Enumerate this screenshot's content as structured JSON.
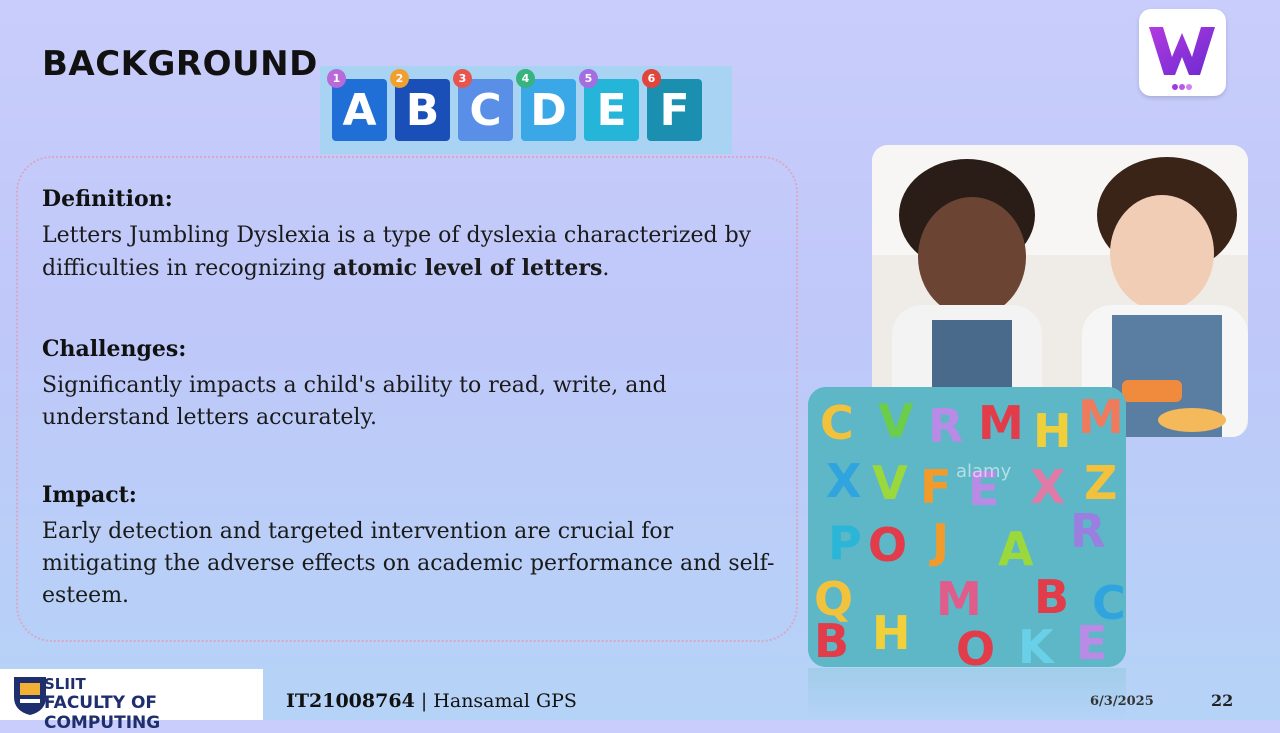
{
  "slide": {
    "title": "BACKGROUND"
  },
  "abc_banner": {
    "blocks": [
      {
        "letter": "A",
        "number": "1",
        "color": "#1f6fd6",
        "badge": "#b86ad8"
      },
      {
        "letter": "B",
        "number": "2",
        "color": "#1b4fb8",
        "badge": "#f0a030"
      },
      {
        "letter": "C",
        "number": "3",
        "color": "#5a8fe8",
        "badge": "#e8554e"
      },
      {
        "letter": "D",
        "number": "4",
        "color": "#3aa7e6",
        "badge": "#36b37e"
      },
      {
        "letter": "E",
        "number": "5",
        "color": "#25b5d8",
        "badge": "#a46ee0"
      },
      {
        "letter": "F",
        "number": "6",
        "color": "#1b8fb0",
        "badge": "#e0463c"
      }
    ]
  },
  "sections": [
    {
      "heading": "Definition:",
      "body_before": "Letters Jumbling Dyslexia is a type of dyslexia characterized by difficulties in recognizing ",
      "body_bold": "atomic level of letters",
      "body_after": "."
    },
    {
      "heading": "Challenges:",
      "body": "Significantly impacts a child's ability to read, write, and understand letters accurately."
    },
    {
      "heading": "Impact:",
      "body": "Early detection and targeted intervention are crucial for mitigating the adverse effects on academic performance and self-esteem."
    }
  ],
  "photo_letters": {
    "watermark": "alamy"
  },
  "footer": {
    "sliit": "SLIIT",
    "faculty": "FACULTY OF COMPUTING",
    "student_id": "IT21008764",
    "separator": "|",
    "author": "Hansamal GPS",
    "date": "6/3/2025",
    "page": "22"
  },
  "colors": {
    "accent_purple": "#7b2fd0",
    "sliit_blue": "#1f2f6e"
  }
}
